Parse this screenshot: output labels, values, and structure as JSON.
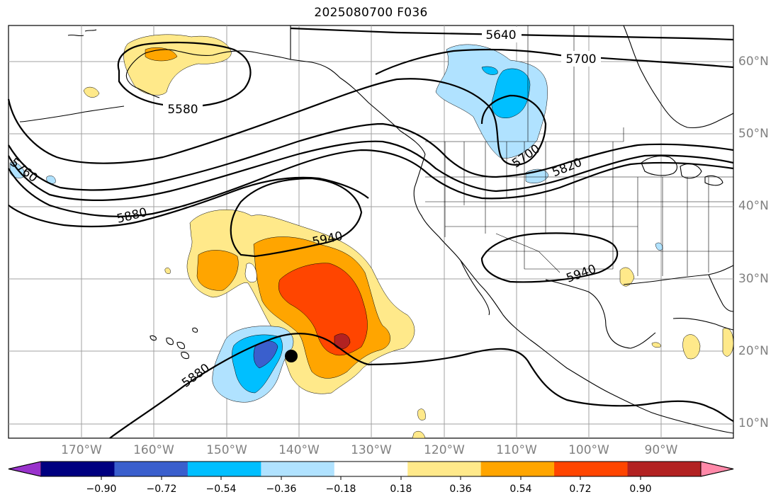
{
  "title": "2025080700 F036",
  "lat_labels": [
    "60°N",
    "50°N",
    "40°N",
    "30°N",
    "20°N",
    "10°N"
  ],
  "lon_labels": [
    "170°W",
    "160°W",
    "150°W",
    "140°W",
    "130°W",
    "120°W",
    "110°W",
    "100°W",
    "90°W"
  ],
  "contour_labels": [
    "5640",
    "5700",
    "5580",
    "5760",
    "5700",
    "5820",
    "5880",
    "5940",
    "5940",
    "5880"
  ],
  "colorbar": {
    "ticks": [
      "−0.90",
      "−0.72",
      "−0.54",
      "−0.36",
      "−0.18",
      "0.18",
      "0.36",
      "0.54",
      "0.72",
      "0.90"
    ],
    "colors": [
      "#9932cc",
      "#000080",
      "#3a5fcd",
      "#00bfff",
      "#b0e2ff",
      "#ffffff",
      "#ffe98a",
      "#ffa500",
      "#ff4500",
      "#b22222",
      "#ff89a9"
    ]
  },
  "legend_colors": {
    "neg_light": "#b0e2ff",
    "neg_mid": "#00bfff",
    "neg_dark": "#3a5fcd",
    "neg_darkest": "#0000cd",
    "pos_light": "#ffe98a",
    "pos_mid": "#ffa500",
    "pos_strong": "#ff4500",
    "pos_max": "#b22222",
    "storm_marker": "#000000"
  }
}
